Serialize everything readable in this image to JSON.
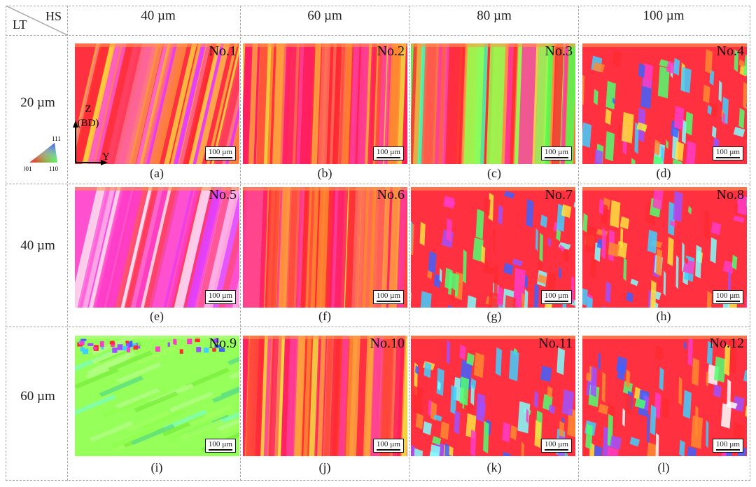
{
  "header": {
    "lt": "LT",
    "hs": "HS",
    "columns": [
      "40 µm",
      "60 µm",
      "80 µm",
      "100 µm"
    ],
    "rows": [
      "20 µm",
      "40 µm",
      "60 µm"
    ]
  },
  "panels": [
    {
      "no": "No.1",
      "caption": "(a)",
      "scale": "100 µm"
    },
    {
      "no": "No.2",
      "caption": "(b)",
      "scale": "100 µm"
    },
    {
      "no": "No.3",
      "caption": "(c)",
      "scale": "100 µm"
    },
    {
      "no": "No.4",
      "caption": "(d)",
      "scale": "100 µm"
    },
    {
      "no": "No.5",
      "caption": "(e)",
      "scale": "100 µm"
    },
    {
      "no": "No.6",
      "caption": "(f)",
      "scale": "100 µm"
    },
    {
      "no": "No.7",
      "caption": "(g)",
      "scale": "100 µm"
    },
    {
      "no": "No.8",
      "caption": "(h)",
      "scale": "100 µm"
    },
    {
      "no": "No.9",
      "caption": "(i)",
      "scale": "100 µm"
    },
    {
      "no": "No.10",
      "caption": "(j)",
      "scale": "100 µm"
    },
    {
      "no": "No.11",
      "caption": "(k)",
      "scale": "100 µm"
    },
    {
      "no": "No.12",
      "caption": "(l)",
      "scale": "100 µm"
    }
  ],
  "legend": {
    "z_axis": "Z",
    "bd": "(BD)",
    "y_axis": "Y",
    "ipf_111": "111",
    "ipf_001": "001",
    "ipf_110": "110"
  },
  "colors": {
    "ipf_001": "#ff2a3a",
    "ipf_110": "#3cff3c",
    "ipf_111": "#3c50ff",
    "pink": "#ff3cc8",
    "grid_line": "#a8a8a8"
  }
}
